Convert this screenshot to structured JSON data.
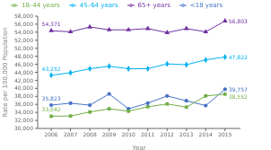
{
  "chart_data": {
    "type": "line",
    "xlabel": "Year",
    "ylabel": "Rate per 100,000 Population",
    "x": [
      2006,
      2007,
      2008,
      2009,
      2010,
      2011,
      2012,
      2013,
      2014,
      2015
    ],
    "xlim": [
      2005.3,
      2015.8
    ],
    "xticks": [
      2006,
      2007,
      2008,
      2009,
      2010,
      2011,
      2012,
      2013,
      2014,
      2015
    ],
    "ylim": [
      30000,
      58000
    ],
    "yticks": [
      {
        "value": 30000,
        "label": "30,000"
      },
      {
        "value": 32000,
        "label": "32,000"
      },
      {
        "value": 34000,
        "label": "34,000"
      },
      {
        "value": 36000,
        "label": "36,000"
      },
      {
        "value": 38000,
        "label": "38,000"
      },
      {
        "value": 40000,
        "label": "40,000"
      },
      {
        "value": 42000,
        "label": "42,000"
      },
      {
        "value": 44000,
        "label": "44,000"
      },
      {
        "value": 46000,
        "label": "46,000"
      },
      {
        "value": 48000,
        "label": "48,000"
      },
      {
        "value": 50000,
        "label": "50,000"
      },
      {
        "value": 52000,
        "label": "52,000"
      },
      {
        "value": 54000,
        "label": "54,000"
      },
      {
        "value": 56000,
        "label": "56,000"
      },
      {
        "value": 58000,
        "label": "58,000"
      }
    ],
    "grid": false,
    "legend": "top",
    "series": [
      {
        "name": "<18 years",
        "color": "#4472C4",
        "marker": "circle",
        "values": [
          35823,
          36300,
          35800,
          38600,
          34900,
          36300,
          38100,
          36900,
          35700,
          39757
        ]
      },
      {
        "name": "18–44 years",
        "color": "#70AD47",
        "marker": "square",
        "values": [
          33042,
          33100,
          34100,
          34900,
          34300,
          35400,
          36100,
          35300,
          38100,
          38552
        ]
      },
      {
        "name": "45–64 years",
        "color": "#00B0F0",
        "marker": "diamond",
        "values": [
          43252,
          43900,
          44900,
          45500,
          44900,
          44900,
          46100,
          45900,
          47100,
          47822
        ]
      },
      {
        "name": "65+ years",
        "color": "#7030A0",
        "marker": "triangle",
        "values": [
          54371,
          54100,
          55300,
          54600,
          54600,
          54900,
          53900,
          54900,
          54100,
          56803
        ]
      }
    ],
    "annotations": [
      {
        "text": "35,823",
        "x": 2006,
        "y": 35823,
        "color": "#4472C4"
      },
      {
        "text": "39,757",
        "x": 2015,
        "y": 39757,
        "color": "#4472C4"
      },
      {
        "text": "33,042",
        "x": 2006,
        "y": 33042,
        "color": "#70AD47"
      },
      {
        "text": "38,552",
        "x": 2015,
        "y": 38552,
        "color": "#70AD47"
      },
      {
        "text": "43,252",
        "x": 2006,
        "y": 43252,
        "color": "#00B0F0"
      },
      {
        "text": "47,822",
        "x": 2015,
        "y": 47822,
        "color": "#00B0F0"
      },
      {
        "text": "54,371",
        "x": 2006,
        "y": 54371,
        "color": "#7030A0"
      },
      {
        "text": "56,803",
        "x": 2015,
        "y": 56803,
        "color": "#7030A0"
      }
    ]
  }
}
